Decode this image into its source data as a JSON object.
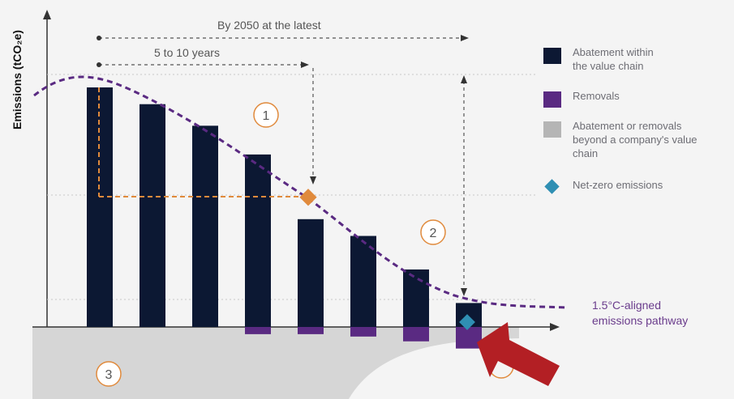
{
  "axis": {
    "ylabel": "Emissions (tCO₂e)"
  },
  "annotations": {
    "by2050": "By 2050 at the latest",
    "years": "5 to 10 years",
    "pathway_line1": "1.5°C-aligned",
    "pathway_line2": "emissions pathway"
  },
  "markers": [
    "1",
    "2",
    "3"
  ],
  "legend": [
    {
      "line1": "Abatement within",
      "line2": "the value chain",
      "line3": "",
      "color": "#0c1833",
      "shape": "square"
    },
    {
      "line1": "Removals",
      "line2": "",
      "line3": "",
      "color": "#5a2a82",
      "shape": "square"
    },
    {
      "line1": "Abatement or removals",
      "line2": "beyond a company's value",
      "line3": "chain",
      "color": "#b5b5b5",
      "shape": "square"
    },
    {
      "line1": "Net-zero emissions",
      "line2": "",
      "line3": "",
      "color": "#2f8fb3",
      "shape": "diamond"
    }
  ],
  "colors": {
    "abatement": "#0c1833",
    "removals": "#5a2a82",
    "beyond": "#b5b5b5",
    "net_zero": "#2f8fb3",
    "interim_target": "#e08a3c",
    "pathway": "#5a2a82",
    "arrow": "#b31f24"
  },
  "abatement_bars": [
    1.0,
    0.93,
    0.84,
    0.72,
    0.45,
    0.38,
    0.24,
    0.1
  ],
  "removal_bars": [
    0,
    0,
    0,
    0.03,
    0.03,
    0.04,
    0.06,
    0.09
  ]
}
